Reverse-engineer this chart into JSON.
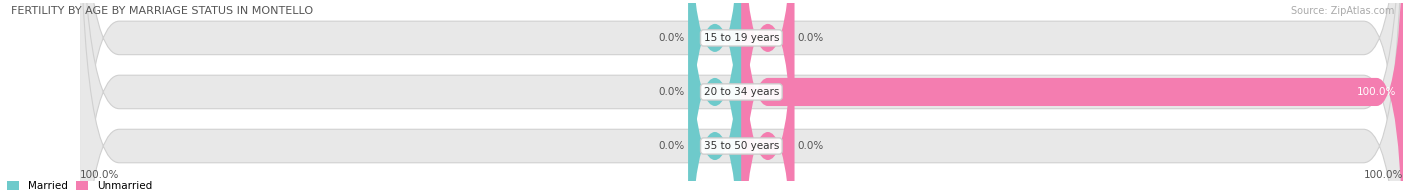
{
  "title": "FERTILITY BY AGE BY MARRIAGE STATUS IN MONTELLO",
  "source": "Source: ZipAtlas.com",
  "categories": [
    "15 to 19 years",
    "20 to 34 years",
    "35 to 50 years"
  ],
  "married_values": [
    0.0,
    0.0,
    0.0
  ],
  "unmarried_values": [
    0.0,
    100.0,
    0.0
  ],
  "married_color": "#6ecacb",
  "unmarried_color": "#f47db0",
  "bar_bg_color": "#e8e8e8",
  "bar_bg_edgecolor": "#ffffff",
  "left_labels_married": [
    "0.0%",
    "0.0%",
    "0.0%"
  ],
  "right_labels_unmarried": [
    "0.0%",
    "100.0%",
    "0.0%"
  ],
  "bottom_left": "100.0%",
  "bottom_right": "100.0%",
  "figsize": [
    14.06,
    1.96
  ],
  "dpi": 100
}
